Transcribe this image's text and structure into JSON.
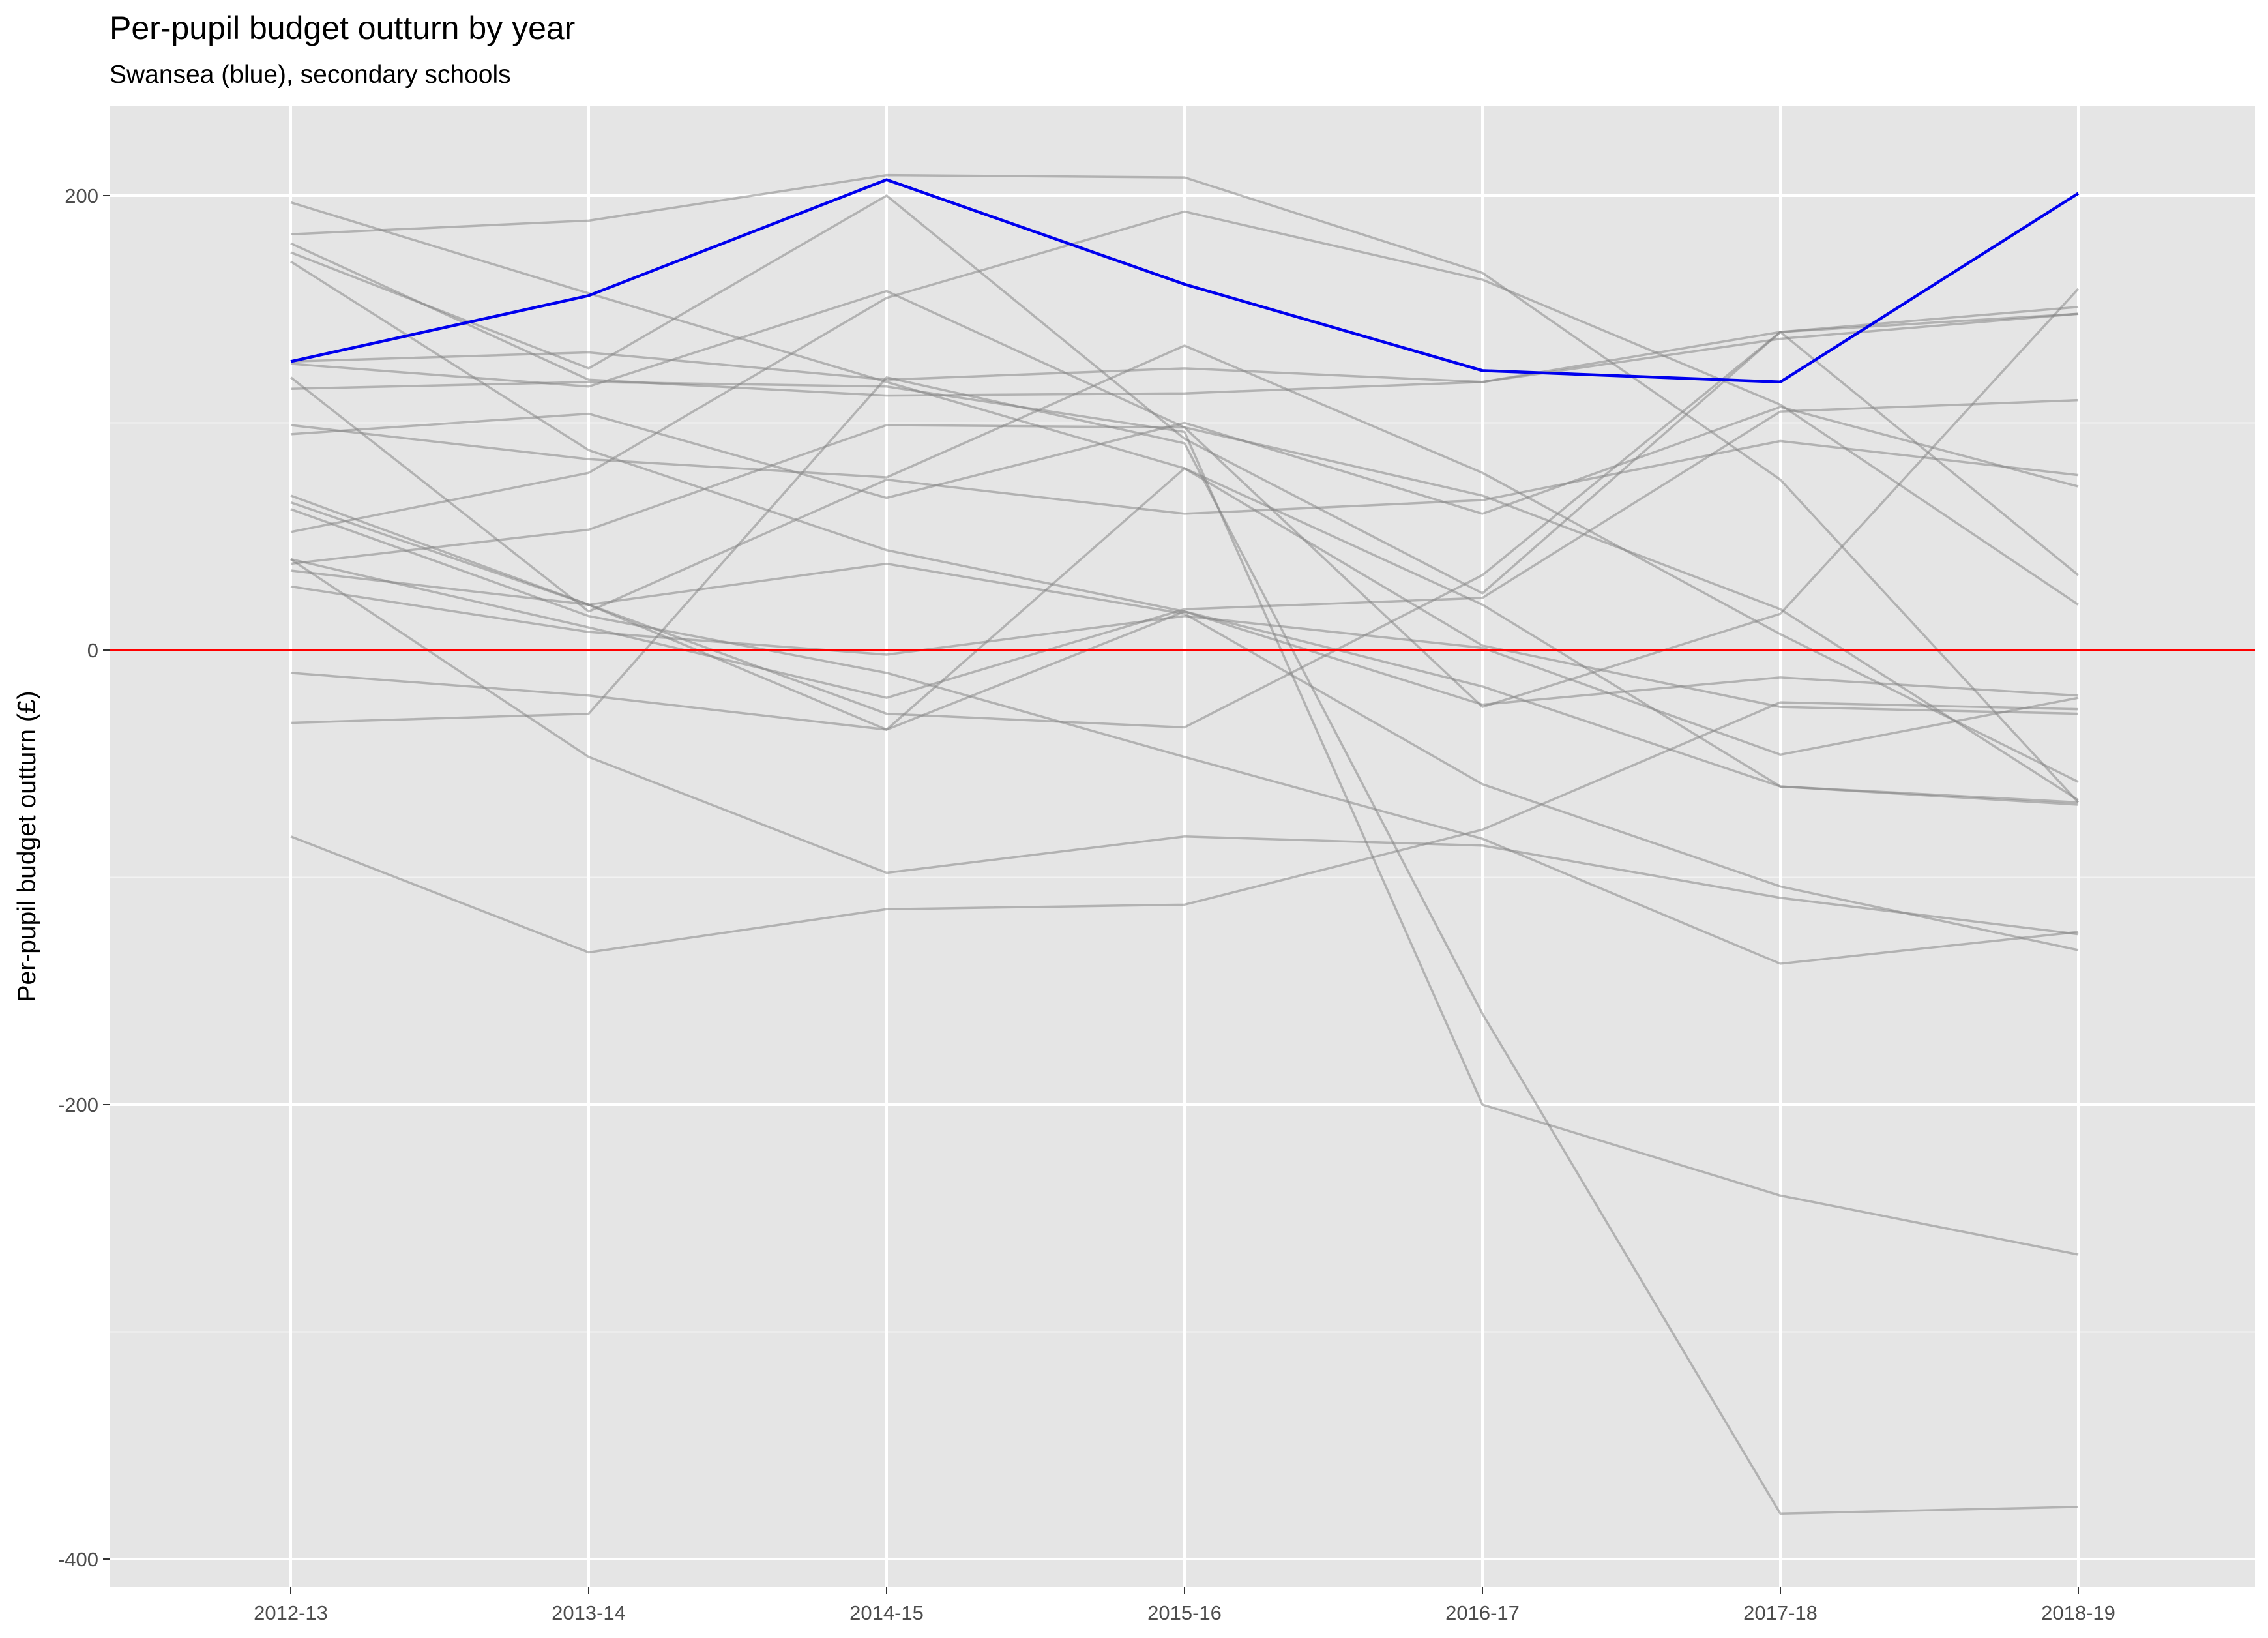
{
  "chart_data": {
    "type": "line",
    "title": "Per-pupil budget outturn by year",
    "subtitle": "Swansea (blue), secondary schools",
    "xlabel": "",
    "ylabel": "Per-pupil budget outturn (£)",
    "categories": [
      "2012-13",
      "2013-14",
      "2014-15",
      "2015-16",
      "2016-17",
      "2017-18",
      "2018-19"
    ],
    "ylim": [
      -407,
      240
    ],
    "y_ticks": [
      200,
      0,
      -200,
      -400
    ],
    "y_tick_labels": [
      "200",
      "0",
      "-200",
      "-400"
    ],
    "grid": true,
    "legend": "none",
    "reference_line": {
      "y": 0,
      "color": "#ff0000"
    },
    "highlight_color": "#0000ee",
    "background_color": "#e5e5e5",
    "other_series_color": "#808080",
    "highlight": {
      "name": "Swansea",
      "values": [
        127,
        156,
        207,
        161,
        123,
        118,
        201
      ]
    },
    "series": [
      {
        "values": [
          197,
          157,
          118,
          80,
          20,
          -60,
          -68
        ]
      },
      {
        "values": [
          183,
          189,
          209,
          208,
          166,
          75,
          -67
        ]
      },
      {
        "values": [
          179,
          119,
          112,
          113,
          118,
          140,
          151
        ]
      },
      {
        "values": [
          175,
          124,
          200,
          93,
          25,
          140,
          148
        ]
      },
      {
        "values": [
          171,
          88,
          44,
          17,
          -16,
          -60,
          -67
        ]
      },
      {
        "values": [
          127,
          131,
          119,
          124,
          118,
          137,
          148
        ]
      },
      {
        "values": [
          126,
          116,
          158,
          98,
          68,
          18,
          -66
        ]
      },
      {
        "values": [
          120,
          17,
          75,
          60,
          66,
          92,
          77
        ]
      },
      {
        "values": [
          99,
          84,
          76,
          134,
          78,
          7,
          -58
        ]
      },
      {
        "values": [
          95,
          104,
          67,
          100,
          60,
          107,
          72
        ]
      },
      {
        "values": [
          68,
          20,
          -35,
          17,
          -24,
          -12,
          -20
        ]
      },
      {
        "values": [
          65,
          20,
          -28,
          -34,
          33,
          140,
          33
        ]
      },
      {
        "values": [
          62,
          15,
          -10,
          -47,
          -83,
          -138,
          -124
        ]
      },
      {
        "values": [
          52,
          78,
          155,
          193,
          163,
          108,
          20
        ]
      },
      {
        "values": [
          40,
          10,
          -21,
          18,
          23,
          105,
          110
        ]
      },
      {
        "values": [
          38,
          53,
          99,
          98,
          -25,
          16,
          159
        ]
      },
      {
        "values": [
          35,
          20,
          38,
          16,
          -59,
          -104,
          -132
        ]
      },
      {
        "values": [
          28,
          8,
          -2,
          15,
          1,
          -46,
          -21
        ]
      },
      {
        "values": [
          -32,
          -28,
          120,
          91,
          -160,
          -380,
          -377
        ]
      },
      {
        "values": [
          40,
          -47,
          -98,
          -82,
          -86,
          -109,
          -125
        ]
      },
      {
        "values": [
          -82,
          -133,
          -114,
          -112,
          -79,
          -23,
          -26
        ]
      },
      {
        "values": [
          -10,
          -20,
          -35,
          80,
          2,
          -25,
          -28
        ]
      },
      {
        "values": [
          115,
          118,
          116,
          96,
          -200,
          -240,
          -266
        ]
      }
    ]
  }
}
